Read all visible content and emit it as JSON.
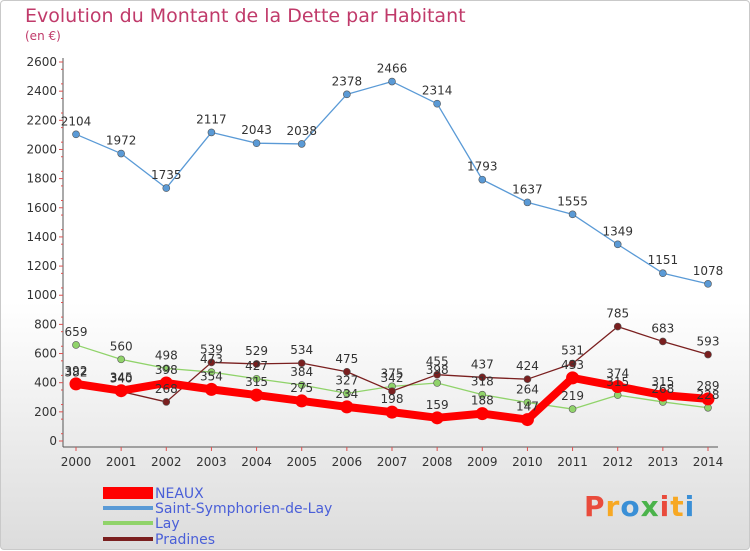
{
  "chart_data": {
    "type": "line",
    "title": "Evolution du Montant de la Dette par Habitant",
    "subtitle": "(en €)",
    "x": [
      "2000",
      "2001",
      "2002",
      "2003",
      "2004",
      "2005",
      "2006",
      "2007",
      "2008",
      "2009",
      "2010",
      "2011",
      "2012",
      "2013",
      "2014"
    ],
    "ylim": [
      0,
      2600
    ],
    "yticks": [
      0,
      200,
      400,
      600,
      800,
      1000,
      1200,
      1400,
      1600,
      1800,
      2000,
      2200,
      2400,
      2600
    ],
    "grid": false,
    "legend_position": "bottom-left",
    "series": [
      {
        "name": "NEAUX",
        "color": "#ff0000",
        "values": [
          392,
          345,
          398,
          354,
          315,
          275,
          234,
          198,
          159,
          188,
          147,
          433,
          374,
          315,
          289
        ]
      },
      {
        "name": "Saint-Symphorien-de-Lay",
        "color": "#5a9ad6",
        "values": [
          2104,
          1972,
          1735,
          2117,
          2043,
          2038,
          2378,
          2466,
          2314,
          1793,
          1637,
          1555,
          1349,
          1151,
          1078
        ]
      },
      {
        "name": "Lay",
        "color": "#90d36a",
        "values": [
          659,
          560,
          498,
          473,
          427,
          384,
          327,
          375,
          398,
          318,
          264,
          219,
          315,
          268,
          228
        ]
      },
      {
        "name": "Pradines",
        "color": "#7a1f1f",
        "values": [
          382,
          340,
          268,
          539,
          529,
          534,
          475,
          342,
          455,
          437,
          424,
          531,
          785,
          683,
          593
        ]
      }
    ]
  },
  "logo": {
    "text": "Proxiti",
    "colors": [
      "#e94b3c",
      "#f7a823",
      "#3a8fd6",
      "#4bb34b",
      "#e94b3c",
      "#f7a823",
      "#3a8fd6"
    ]
  }
}
